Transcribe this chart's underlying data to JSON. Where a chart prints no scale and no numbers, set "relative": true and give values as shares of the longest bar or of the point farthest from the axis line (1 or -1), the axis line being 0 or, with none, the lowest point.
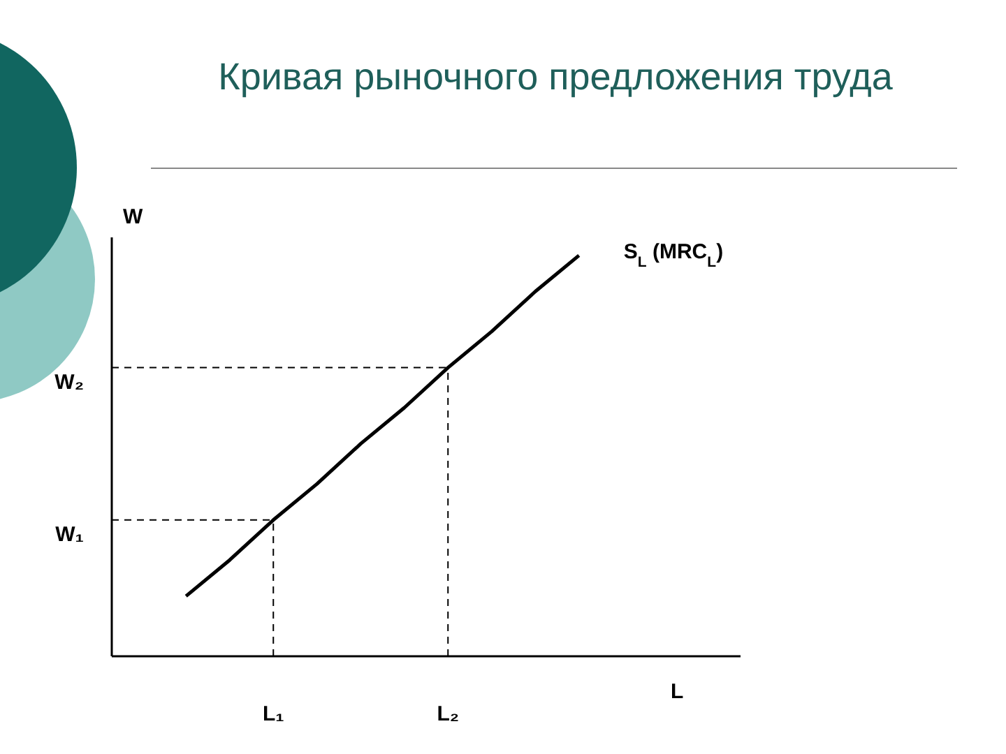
{
  "chart_data": {
    "type": "line",
    "title": "Кривая рыночного предложения труда",
    "xlabel": "L",
    "ylabel": "W",
    "relative": true,
    "marker": "none",
    "categories": [
      null,
      null,
      "L₁",
      null,
      null,
      null,
      "L₂",
      null,
      null,
      null
    ],
    "series": [
      {
        "name": "S$_{L}$ (MRC$_{L}$)",
        "color": "#000000",
        "values": [
          0.15,
          0.24,
          0.34,
          0.43,
          0.53,
          0.62,
          0.72,
          0.81,
          0.91,
          1
        ]
      }
    ],
    "ref_lines": [
      {
        "axis": "y",
        "value": 0.34,
        "label": "W₁",
        "line_style": "dashed",
        "color": "#000000"
      },
      {
        "axis": "y",
        "value": 0.72,
        "label": "W₂",
        "line_style": "dashed",
        "color": "#000000"
      },
      {
        "axis": "x",
        "value": "L₁",
        "line_style": "dashed",
        "color": "#000000"
      },
      {
        "axis": "x",
        "value": "L₂",
        "line_style": "dashed",
        "color": "#000000"
      }
    ]
  }
}
